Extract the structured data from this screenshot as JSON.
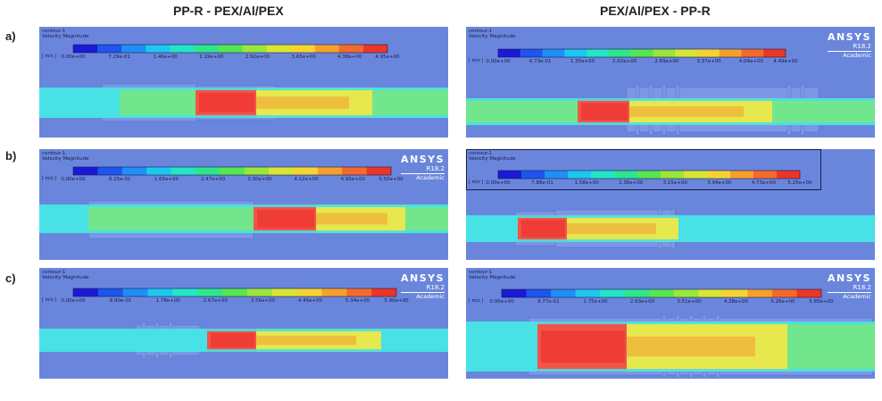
{
  "columns": [
    "PP-R - PEX/Al/PEX",
    "PEX/Al/PEX - PP-R"
  ],
  "rows": [
    "a)",
    "b)",
    "c)"
  ],
  "panels": [
    {
      "title_line1": "contour-1",
      "title_line2": "Velocity Magnitude",
      "unit": "[ m/s ]",
      "ticks": [
        "0.00e+00",
        "7.29e-01",
        "1.46e+00",
        "2.19e+00",
        "2.92e+00",
        "3.65e+00",
        "4.38e+00",
        "4.95e+00"
      ],
      "ansys": "",
      "version": "",
      "academic": ""
    },
    {
      "title_line1": "contour-1",
      "title_line2": "Velocity Magnitude",
      "unit": "[ m/s ]",
      "ticks": [
        "0.00e+00",
        "6.73e-01",
        "1.35e+00",
        "2.02e+00",
        "2.69e+00",
        "3.37e+00",
        "4.04e+00",
        "4.49e+00"
      ],
      "ansys": "ANSYS",
      "version": "R18.2",
      "academic": "Academic"
    },
    {
      "title_line1": "contour-1",
      "title_line2": "Velocity Magnitude",
      "unit": "[ m/s ]",
      "ticks": [
        "0.00e+00",
        "8.25e-01",
        "1.65e+00",
        "2.47e+00",
        "3.30e+00",
        "4.12e+00",
        "4.95e+00",
        "5.50e+00"
      ],
      "ansys": "ANSYS",
      "version": "R18.2",
      "academic": "Academic"
    },
    {
      "title_line1": "contour-1",
      "title_line2": "Velocity Magnitude",
      "unit": "[ m/s ]",
      "ticks": [
        "0.00e+00",
        "7.88e-01",
        "1.58e+00",
        "2.36e+00",
        "3.15e+00",
        "3.94e+00",
        "4.73e+00",
        "5.25e+00"
      ],
      "ansys": "",
      "version": "",
      "academic": ""
    },
    {
      "title_line1": "contour-1",
      "title_line2": "Velocity Magnitude",
      "unit": "[ m/s ]",
      "ticks": [
        "0.00e+00",
        "8.90e-01",
        "1.78e+00",
        "2.67e+00",
        "3.56e+00",
        "4.45e+00",
        "5.34e+00",
        "5.90e+00"
      ],
      "ansys": "ANSYS",
      "version": "R18.2",
      "academic": "Academic"
    },
    {
      "title_line1": "contour-1",
      "title_line2": "Velocity Magnitude",
      "unit": "[ m/s ]",
      "ticks": [
        "0.00e+00",
        "8.77e-01",
        "1.75e+00",
        "2.63e+00",
        "3.51e+00",
        "4.38e+00",
        "5.26e+00",
        "5.85e+00"
      ],
      "ansys": "ANSYS",
      "version": "R18.2",
      "academic": "Academic"
    }
  ],
  "colors": {
    "background_blue": "#6a86dc",
    "pipe_cyan": "#47e1e6",
    "pipe_green": "#72e68c",
    "jet_yellow": "#e6e84e",
    "jet_red": "#f25448",
    "legend_scale": [
      "#1a1ad6",
      "#1e55ee",
      "#1e8ff6",
      "#1ec7f0",
      "#22e6c6",
      "#2ee68c",
      "#56e650",
      "#9ae63a",
      "#d6e632",
      "#f6d430",
      "#f6a02c",
      "#f46a2c",
      "#ec3626"
    ]
  }
}
